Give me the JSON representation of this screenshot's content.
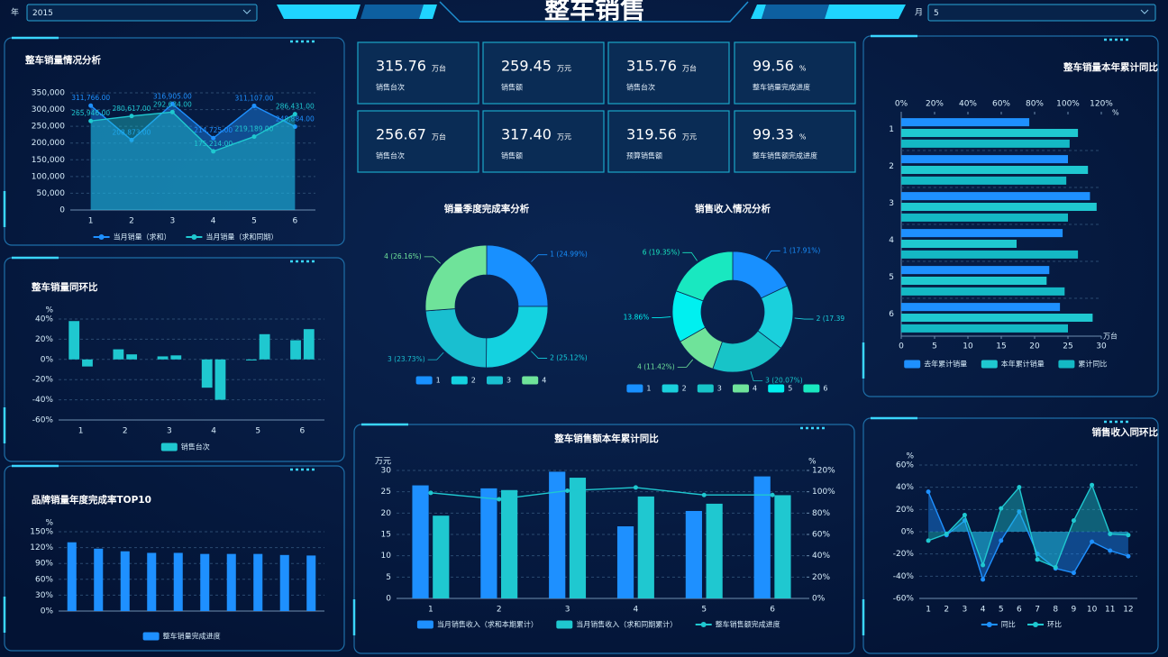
{
  "header": {
    "year_label": "年",
    "year": "2015",
    "title": "整车销售",
    "month_label": "月",
    "month": "5"
  },
  "kpis": [
    {
      "value": "315.76",
      "unit": "万台",
      "label": "销售台次"
    },
    {
      "value": "259.45",
      "unit": "万元",
      "label": "销售额"
    },
    {
      "value": "315.76",
      "unit": "万台",
      "label": "销售台次"
    },
    {
      "value": "99.56",
      "unit": "%",
      "label": "整车销量完成进度"
    },
    {
      "value": "256.67",
      "unit": "万台",
      "label": "销售台次"
    },
    {
      "value": "317.40",
      "unit": "万元",
      "label": "销售额"
    },
    {
      "value": "319.56",
      "unit": "万元",
      "label": "预算销售额"
    },
    {
      "value": "99.33",
      "unit": "%",
      "label": "整车销售额完成进度"
    }
  ],
  "chart_data": [
    {
      "type": "area",
      "title": "整车销量情况分析",
      "categories": [
        "1",
        "2",
        "3",
        "4",
        "5",
        "6"
      ],
      "series": [
        {
          "name": "当月销量（求和）",
          "color": "#1e90ff",
          "values": [
            311766,
            208873,
            316905,
            214725,
            311107,
            248884
          ],
          "value_labels": [
            "311,766.00",
            "208,873.00",
            "316,905.00",
            "214,725.00",
            "311,107.00",
            "248,884.00"
          ]
        },
        {
          "name": "当月销量（求和同期）",
          "color": "#1fc8d0",
          "values": [
            265946,
            280617,
            292634,
            175214,
            219189,
            286431
          ],
          "value_labels": [
            "265,946.00",
            "280,617.00",
            "292,634.00",
            "175,214.00",
            "219,189.00",
            "286,431.00"
          ]
        }
      ],
      "ylim": [
        0,
        350000
      ],
      "yticks": [
        0,
        {
          "value": 50000,
          "label": "50,000"
        },
        {
          "value": 100000,
          "label": "100,000"
        },
        {
          "value": 150000,
          "label": "150,000"
        },
        {
          "value": 200000,
          "label": "200,000"
        },
        {
          "value": 250000,
          "label": "250,000"
        },
        {
          "value": 300000,
          "label": "300,000"
        },
        {
          "value": 350000,
          "label": "350,000"
        }
      ],
      "grid": true
    },
    {
      "type": "bar",
      "title": "整车销量同环比",
      "categories": [
        "1",
        "2",
        "3",
        "4",
        "5",
        "6"
      ],
      "series": [
        {
          "name": "销售台次",
          "color": "#1fc8d0",
          "values": [
            38,
            10,
            3,
            -28,
            -1,
            19
          ]
        },
        {
          "color": "#1fc8d0",
          "values": [
            -7,
            5,
            4,
            -40,
            25,
            30
          ]
        }
      ],
      "y_unit": "%",
      "ylim": [
        -60,
        40
      ],
      "yticks": [
        {
          "value": -60,
          "label": "-60%"
        },
        {
          "value": -40,
          "label": "-40%"
        },
        {
          "value": -20,
          "label": "-20%"
        },
        {
          "value": 0,
          "label": "0%"
        },
        {
          "value": 20,
          "label": "20%"
        },
        {
          "value": 40,
          "label": "40%"
        }
      ],
      "grid": true
    },
    {
      "type": "bar",
      "title": "品牌销量年度完成率TOP10",
      "categories": [
        null,
        null,
        null,
        null,
        null,
        null,
        null,
        null,
        null,
        null
      ],
      "series": [
        {
          "name": "整车销量完成进度",
          "color": "#1e90ff",
          "values": [
            130,
            118,
            113,
            110,
            110,
            108,
            108,
            108,
            106,
            105
          ]
        }
      ],
      "y_unit": "%",
      "ylim": [
        0,
        150
      ],
      "yticks": [
        {
          "value": 0,
          "label": "0%"
        },
        {
          "value": 30,
          "label": "30%"
        },
        {
          "value": 60,
          "label": "60%"
        },
        {
          "value": 90,
          "label": "90%"
        },
        {
          "value": 120,
          "label": "120%"
        },
        {
          "value": 150,
          "label": "150%"
        }
      ],
      "grid": true
    },
    {
      "type": "donut",
      "title": "销量季度完成率分析",
      "categories": [
        "1",
        "2",
        "3",
        "4"
      ],
      "values": [
        24.99,
        25.12,
        23.73,
        26.16
      ],
      "value_labels": [
        "1 (24.99%)",
        "2 (25.12%)",
        "3 (23.73%)",
        "4 (26.16%)"
      ],
      "colors": [
        "#1890ff",
        "#14d2e0",
        "#19bfd0",
        "#6fe39a"
      ]
    },
    {
      "type": "donut",
      "title": "销售收入情况分析",
      "categories": [
        "1",
        "2",
        "3",
        "4",
        "5",
        "6"
      ],
      "values": [
        17.91,
        17.39,
        20.07,
        11.42,
        13.86,
        19.35
      ],
      "value_labels": [
        "1 (17.91%)",
        "2 (17.39",
        "3 (20.07%)",
        "4 (11.42%)",
        "13.86%",
        "6 (19.35%)"
      ],
      "colors": [
        "#1890ff",
        "#1ad0dc",
        "#17c4c8",
        "#6fe39a",
        "#00f0f0",
        "#19e8c0"
      ]
    },
    {
      "type": "hbar",
      "title": "整车销量本年累计同比",
      "categories": [
        "1",
        "2",
        "3",
        "4",
        "5",
        "6"
      ],
      "series": [
        {
          "name": "去年累计销量",
          "color": "#1e90ff",
          "values": [
            19.2,
            25,
            28.3,
            24.2,
            22.2,
            23.8
          ]
        },
        {
          "name": "本年累计销量",
          "color": "#1fc8d0",
          "values": [
            26.5,
            28,
            29.3,
            17.3,
            21.8,
            28.7
          ]
        },
        {
          "name": "累计同比",
          "color": "#14b8c4",
          "axis": "x2",
          "values": [
            101,
            99,
            100,
            106,
            98,
            100
          ]
        }
      ],
      "x_unit": "万台",
      "xlim": [
        0,
        30
      ],
      "xticks": [
        0,
        5,
        10,
        15,
        20,
        25,
        30
      ],
      "x2_unit": "%",
      "x2lim": [
        0,
        120
      ],
      "x2ticks": [
        {
          "value": 0,
          "label": "0%"
        },
        {
          "value": 20,
          "label": "20%"
        },
        {
          "value": 40,
          "label": "40%"
        },
        {
          "value": 60,
          "label": "60%"
        },
        {
          "value": 80,
          "label": "80%"
        },
        {
          "value": 100,
          "label": "100%"
        },
        {
          "value": 120,
          "label": "120%"
        }
      ]
    },
    {
      "type": "bar",
      "title": "整车销售额本年累计同比",
      "categories": [
        "1",
        "2",
        "3",
        "4",
        "5",
        "6"
      ],
      "series": [
        {
          "name": "当月销售收入（求和本期累计）",
          "color": "#1e90ff",
          "values": [
            26.5,
            25.8,
            29.7,
            16.9,
            20.5,
            28.6
          ]
        },
        {
          "name": "当月销售收入（求和同期累计）",
          "color": "#1fc8d0",
          "values": [
            19.4,
            25.4,
            28.3,
            23.9,
            22.2,
            24.2
          ]
        },
        {
          "name": "整车销售额完成进度",
          "type": "line",
          "axis": "y2",
          "color": "#1fc8d0",
          "values": [
            99,
            93,
            101,
            104,
            97,
            97
          ]
        }
      ],
      "y_unit": "万元",
      "ylim": [
        0,
        30
      ],
      "yticks": [
        0,
        5,
        10,
        15,
        20,
        25,
        30
      ],
      "y2_unit": "%",
      "y2lim": [
        0,
        120
      ],
      "y2ticks": [
        {
          "value": 0,
          "label": "0%"
        },
        {
          "value": 20,
          "label": "20%"
        },
        {
          "value": 40,
          "label": "40%"
        },
        {
          "value": 60,
          "label": "60%"
        },
        {
          "value": 80,
          "label": "80%"
        },
        {
          "value": 100,
          "label": "100%"
        },
        {
          "value": 120,
          "label": "120%"
        }
      ],
      "grid": true
    },
    {
      "type": "area",
      "title": "销售收入同环比",
      "categories": [
        "1",
        "2",
        "3",
        "4",
        "5",
        "6",
        "7",
        "8",
        "9",
        "10",
        "11",
        "12"
      ],
      "series": [
        {
          "name": "同比",
          "color": "#1e90ff",
          "values": [
            36,
            -3,
            10,
            -43,
            -8,
            18,
            -20,
            -33,
            -37,
            -9,
            -17,
            -22
          ]
        },
        {
          "name": "环比",
          "color": "#1fc8d0",
          "values": [
            -8,
            -2,
            15,
            -30,
            21,
            40,
            -25,
            -32,
            10,
            42,
            -2,
            -3
          ]
        }
      ],
      "y_unit": "%",
      "ylim": [
        -60,
        60
      ],
      "yticks": [
        {
          "value": -60,
          "label": "-60%"
        },
        {
          "value": -40,
          "label": "-40%"
        },
        {
          "value": -20,
          "label": "-20%"
        },
        {
          "value": 0,
          "label": "0%"
        },
        {
          "value": 20,
          "label": "20%"
        },
        {
          "value": 40,
          "label": "40%"
        },
        {
          "value": 60,
          "label": "60%"
        }
      ],
      "grid": true
    }
  ]
}
